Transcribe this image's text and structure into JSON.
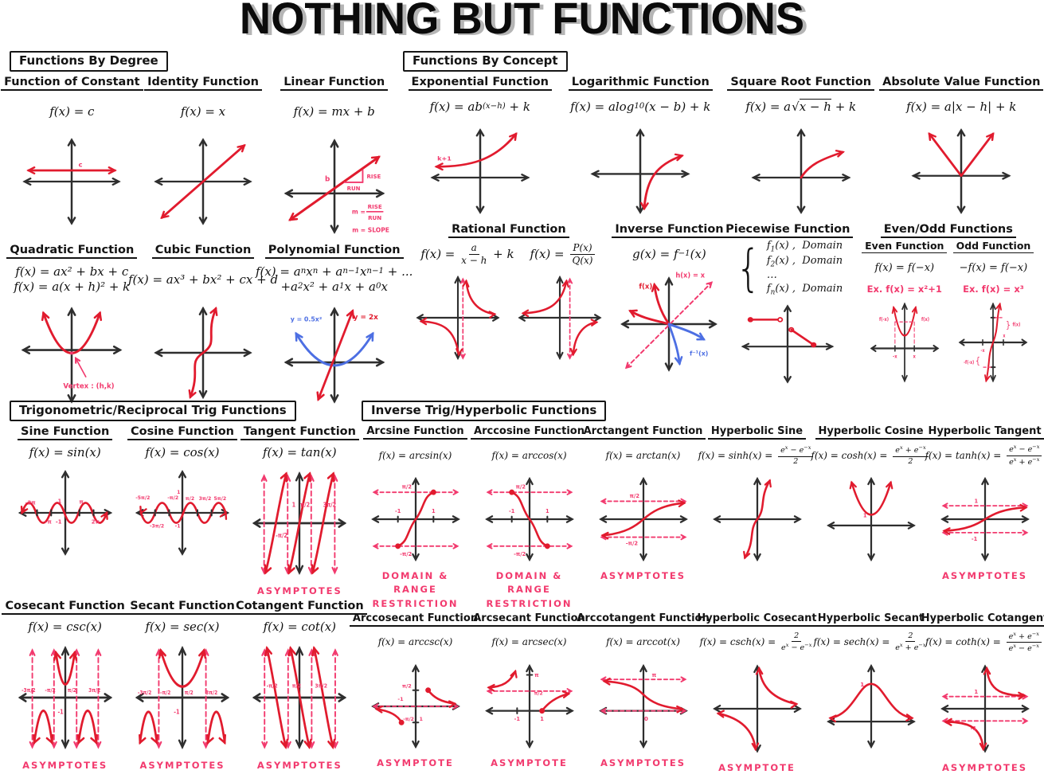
{
  "title": "NOTHING BUT FUNCTIONS",
  "colors": {
    "red": "#e11b2e",
    "pink": "#f23a6e",
    "blue": "#4d6fe3",
    "axis": "#2e2e2e",
    "ink": "#141414",
    "shadow": "#b5b5b5"
  },
  "sections": [
    {
      "id": "degree",
      "header": "Functions By Degree",
      "rows": [
        [
          {
            "name": "function-of-constant",
            "title": "Function of Constant",
            "formulas": [
              [
                "f(x) = c"
              ]
            ],
            "graphs": [
              "constant"
            ],
            "labels": {
              "c": "c"
            }
          },
          {
            "name": "identity-function",
            "title": "Identity Function",
            "formulas": [
              [
                "f(x) = x"
              ]
            ],
            "graphs": [
              "identity"
            ]
          },
          {
            "name": "linear-function",
            "title": "Linear Function",
            "formulas": [
              [
                "f(x) = mx + b"
              ]
            ],
            "graphs": [
              "linear"
            ],
            "labels": {
              "b": "b",
              "rise": "RISE",
              "run": "RUN",
              "m_eq": "m =",
              "m_slope": "m = SLOPE"
            }
          }
        ],
        [
          {
            "name": "quadratic-function",
            "title": "Quadratic Function",
            "formulas": [
              [
                "f(x) = ax² + bx + c"
              ],
              [
                "f(x) = a(x + h)² + k"
              ]
            ],
            "graphs": [
              "quadratic"
            ],
            "labels": {
              "vertex": "Vertex : (h,k)"
            }
          },
          {
            "name": "cubic-function",
            "title": "Cubic Function",
            "formulas": [
              [
                "f(x) = ax³ + bx² + cx + d"
              ]
            ],
            "graphs": [
              "cubic"
            ]
          },
          {
            "name": "polynomial-function",
            "title": "Polynomial Function",
            "formulas": [
              [
                "f(x) = a",
                {
                  "sub": "n"
                },
                "x",
                {
                  "sup": "n"
                },
                " + a",
                {
                  "sub": "n−1"
                },
                "x",
                {
                  "sup": "n−1"
                },
                " + ..."
              ],
              [
                "+a",
                {
                  "sub": "2"
                },
                "x² + a",
                {
                  "sub": "1"
                },
                "x + a",
                {
                  "sub": "0"
                },
                "x"
              ]
            ],
            "graphs": [
              "polynomial"
            ],
            "labels": {
              "blue": "y = 0.5x²",
              "red": "y = 2x"
            }
          }
        ]
      ]
    },
    {
      "id": "concept",
      "header": "Functions By Concept",
      "rows": [
        [
          {
            "name": "exponential-function",
            "title": "Exponential Function",
            "formulas": [
              [
                "f(x) = ab",
                {
                  "sup": "(x−h)"
                },
                " + k"
              ]
            ],
            "graphs": [
              "exponential"
            ],
            "labels": {
              "k1": "k+1"
            }
          },
          {
            "name": "logarithmic-function",
            "title": "Logarithmic Function",
            "formulas": [
              [
                "f(x) = alog",
                {
                  "sub": "10"
                },
                "(x − b) + k"
              ]
            ],
            "graphs": [
              "logarithmic"
            ]
          },
          {
            "name": "square-root-function",
            "title": "Square Root Function",
            "formulas": [
              [
                "f(x) = a",
                {
                  "rad": "x − h"
                },
                " + k"
              ]
            ],
            "graphs": [
              "sqrt"
            ]
          },
          {
            "name": "absolute-value-function",
            "title": "Absolute Value Function",
            "formulas": [
              [
                "f(x) = a|x − h| + k"
              ]
            ],
            "graphs": [
              "absolute"
            ]
          }
        ],
        [
          {
            "name": "rational-function",
            "title": "Rational Function",
            "formulas": [
              [
                "f(x) = ",
                {
                  "num": "a",
                  "den": "x − h"
                },
                " + k",
                {
                  "sp": 20
                },
                "f(x) = ",
                {
                  "num": "P(x)",
                  "den": "Q(x)"
                }
              ]
            ],
            "graphs": [
              "rational1",
              "rational2"
            ]
          },
          {
            "name": "inverse-function",
            "title": "Inverse Function",
            "formulas": [
              [
                "g(x) = f",
                {
                  "sup": "−1"
                },
                "(x)"
              ]
            ],
            "graphs": [
              "inverse"
            ],
            "labels": {
              "f": "f(x)",
              "h": "h(x) = x",
              "finv": "f⁻¹(x)"
            }
          },
          {
            "name": "piecewise-function",
            "title": "Piecewise Function",
            "brace": "{",
            "piecewise": [
              [
                "f",
                {
                  "sub": "1"
                },
                "(x) ,  Domain"
              ],
              [
                "f",
                {
                  "sub": "2"
                },
                "(x) ,  Domain"
              ],
              [
                "…"
              ],
              [
                "f",
                {
                  "sub": "n"
                },
                "(x) ,  Domain"
              ]
            ],
            "graphs": [
              "piecewise"
            ]
          },
          {
            "name": "even-odd-functions",
            "title": "Even/Odd Functions",
            "subs": [
              {
                "name": "even-function",
                "title": "Even Function",
                "formulas": [
                  [
                    "f(x) = f(−x)"
                  ]
                ],
                "example": "Ex. f(x) = x²+1",
                "graphs": [
                  "even"
                ],
                "labels": {
                  "fnegx": "f(-x)",
                  "fx": "f(x)",
                  "negx": "-x",
                  "x": "x"
                }
              },
              {
                "name": "odd-function",
                "title": "Odd Function",
                "formulas": [
                  [
                    "−f(x) = f(−x)"
                  ]
                ],
                "example": "Ex. f(x) = x³",
                "graphs": [
                  "odd"
                ],
                "labels": {
                  "fx": "f(x)",
                  "nfnx": "-f(-x)",
                  "negx": "-x",
                  "x": "x"
                }
              }
            ]
          }
        ]
      ]
    },
    {
      "id": "trig",
      "header": "Trigonometric/Reciprocal Trig Functions",
      "rows": [
        [
          {
            "name": "sine-function",
            "title": "Sine Function",
            "formulas": [
              [
                "f(x) = sin(x)"
              ]
            ],
            "graphs": [
              "sine"
            ],
            "labels": {
              "neg2pi": "-2π",
              "negpi": "-π",
              "one": "1",
              "neg1": "-1",
              "pi": "π",
              "twopi": "2π"
            }
          },
          {
            "name": "cosine-function",
            "title": "Cosine Function",
            "formulas": [
              [
                "f(x) = cos(x)"
              ]
            ],
            "graphs": [
              "cosine"
            ],
            "labels": {
              "neg5pi2": "-5π/2",
              "neg3pi2": "-3π/2",
              "negpi2": "-π/2",
              "one": "1",
              "pi2": "π/2",
              "threepi2": "3π/2",
              "fivepi2": "5π/2",
              "neg1": "-1"
            }
          },
          {
            "name": "tangent-function",
            "title": "Tangent Function",
            "formulas": [
              [
                "f(x) = tan(x)"
              ]
            ],
            "graphs": [
              "tangent"
            ],
            "labels": {
              "one": "1",
              "negpi2": "-π/2",
              "pi2": "π/2",
              "threepi2": "3π/2"
            },
            "footer": "ASYMPTOTES"
          }
        ],
        [
          {
            "name": "cosecant-function",
            "title": "Cosecant Function",
            "formulas": [
              [
                "f(x) = csc(x)"
              ]
            ],
            "graphs": [
              "cosecant"
            ],
            "labels": {
              "neg3pi2": "-3π/2",
              "negpi2": "-π/2",
              "pi2": "π/2",
              "threepi2": "3π/2",
              "neg1": "-1"
            },
            "footer": "ASYMPTOTES"
          },
          {
            "name": "secant-function",
            "title": "Secant Function",
            "formulas": [
              [
                "f(x) = sec(x)"
              ]
            ],
            "graphs": [
              "secant"
            ],
            "labels": {
              "neg3pi2": "-3π/2",
              "negpi2": "-π/2",
              "pi2": "π/2",
              "threepi2": "3π/2",
              "neg1": "-1"
            },
            "footer": "ASYMPTOTES"
          },
          {
            "name": "cotangent-function",
            "title": "Cotangent Function",
            "formulas": [
              [
                "f(x) = cot(x)"
              ]
            ],
            "graphs": [
              "cotangent"
            ],
            "labels": {
              "negpi2": "-π/2",
              "pi2": "π/2",
              "threepi2": "3π/2"
            },
            "footer": "ASYMPTOTES"
          }
        ]
      ]
    },
    {
      "id": "invhyp",
      "header": "Inverse Trig/Hyperbolic Functions",
      "rows": [
        [
          {
            "name": "arcsine-function",
            "title": "Arcsine Function",
            "formulas": [
              [
                "f(x) = arcsin(x)"
              ]
            ],
            "graphs": [
              "arcsine"
            ],
            "labels": {
              "pi2": "π/2",
              "negpi2": "-π/2",
              "neg1": "-1",
              "one": "1"
            },
            "footer": "DOMAIN & RANGE RESTRICTION"
          },
          {
            "name": "arccosine-function",
            "title": "Arccosine Function",
            "formulas": [
              [
                "f(x) = arccos(x)"
              ]
            ],
            "graphs": [
              "arccosine"
            ],
            "labels": {
              "pi2": "π/2",
              "negpi2": "-π/2",
              "neg1": "-1",
              "one": "1"
            },
            "footer": "DOMAIN & RANGE RESTRICTION"
          },
          {
            "name": "arctangent-function",
            "title": "Arctangent Function",
            "formulas": [
              [
                "f(x) = arctan(x)"
              ]
            ],
            "graphs": [
              "arctangent"
            ],
            "labels": {
              "pi2": "π/2",
              "negpi2": "-π/2"
            },
            "footer": "ASYMPTOTES"
          },
          {
            "name": "hyperbolic-sine",
            "title": "Hyperbolic Sine",
            "formulas": [
              [
                "f(x) = sinh(x) = ",
                {
                  "num": [
                    "e",
                    {
                      "sup": "x"
                    },
                    " − e",
                    {
                      "sup": "−x"
                    }
                  ],
                  "den": "2"
                }
              ]
            ],
            "graphs": [
              "sinh"
            ]
          },
          {
            "name": "hyperbolic-cosine",
            "title": "Hyperbolic Cosine",
            "formulas": [
              [
                "f(x) = cosh(x) = ",
                {
                  "num": [
                    "e",
                    {
                      "sup": "x"
                    },
                    " + e",
                    {
                      "sup": "−x"
                    }
                  ],
                  "den": "2"
                }
              ]
            ],
            "graphs": [
              "cosh"
            ],
            "labels": {
              "one": "1"
            }
          },
          {
            "name": "hyperbolic-tangent",
            "title": "Hyperbolic Tangent",
            "formulas": [
              [
                "f(x) = tanh(x) = ",
                {
                  "num": [
                    "e",
                    {
                      "sup": "x"
                    },
                    " − e",
                    {
                      "sup": "−x"
                    }
                  ],
                  "den": [
                    "e",
                    {
                      "sup": "x"
                    },
                    " + e",
                    {
                      "sup": "−x"
                    }
                  ]
                }
              ]
            ],
            "graphs": [
              "tanh"
            ],
            "labels": {
              "one": "1",
              "neg1": "-1"
            },
            "footer": "ASYMPTOTES"
          }
        ],
        [
          {
            "name": "arccosecant-function",
            "title": "Arccosecant Function",
            "formulas": [
              [
                "f(x) = arccsc(x)"
              ]
            ],
            "graphs": [
              "arccsc"
            ],
            "labels": {
              "pi2": "π/2",
              "neg1": "-1",
              "negpi2": "-π/2",
              "one": "1"
            },
            "footer": "ASYMPTOTE"
          },
          {
            "name": "arcsecant-function",
            "title": "Arcsecant Function",
            "formulas": [
              [
                "f(x) = arcsec(x)"
              ]
            ],
            "graphs": [
              "arcsec"
            ],
            "labels": {
              "pi": "π",
              "pi2": "π/2",
              "neg1": "-1",
              "one": "1"
            },
            "footer": "ASYMPTOTE"
          },
          {
            "name": "arccotangent-function",
            "title": "Arccotangent Function",
            "formulas": [
              [
                "f(x) = arccot(x)"
              ]
            ],
            "graphs": [
              "arccot"
            ],
            "labels": {
              "pi": "π",
              "zero": "0"
            },
            "footer": "ASYMPTOTES"
          },
          {
            "name": "hyperbolic-cosecant",
            "title": "Hyperbolic Cosecant",
            "formulas": [
              [
                "f(x) = csch(x) = ",
                {
                  "num": "2",
                  "den": [
                    "e",
                    {
                      "sup": "x"
                    },
                    " − e",
                    {
                      "sup": "−x"
                    }
                  ]
                }
              ]
            ],
            "graphs": [
              "csch"
            ],
            "footer": "ASYMPTOTE"
          },
          {
            "name": "hyperbolic-secant",
            "title": "Hyperbolic Secant",
            "formulas": [
              [
                "f(x) = sech(x) = ",
                {
                  "num": "2",
                  "den": [
                    "e",
                    {
                      "sup": "x"
                    },
                    " + e",
                    {
                      "sup": "−x"
                    }
                  ]
                }
              ]
            ],
            "graphs": [
              "sech"
            ],
            "labels": {
              "one": "1"
            }
          },
          {
            "name": "hyperbolic-cotangent",
            "title": "Hyperbolic Cotangent",
            "formulas": [
              [
                "f(x) = coth(x) = ",
                {
                  "num": [
                    "e",
                    {
                      "sup": "x"
                    },
                    " + e",
                    {
                      "sup": "−x"
                    }
                  ],
                  "den": [
                    "e",
                    {
                      "sup": "x"
                    },
                    " − e",
                    {
                      "sup": "−x"
                    }
                  ]
                }
              ]
            ],
            "graphs": [
              "coth"
            ],
            "labels": {
              "one": "1",
              "neg1": "-1"
            },
            "footer": "ASYMPTOTES"
          }
        ]
      ]
    }
  ]
}
